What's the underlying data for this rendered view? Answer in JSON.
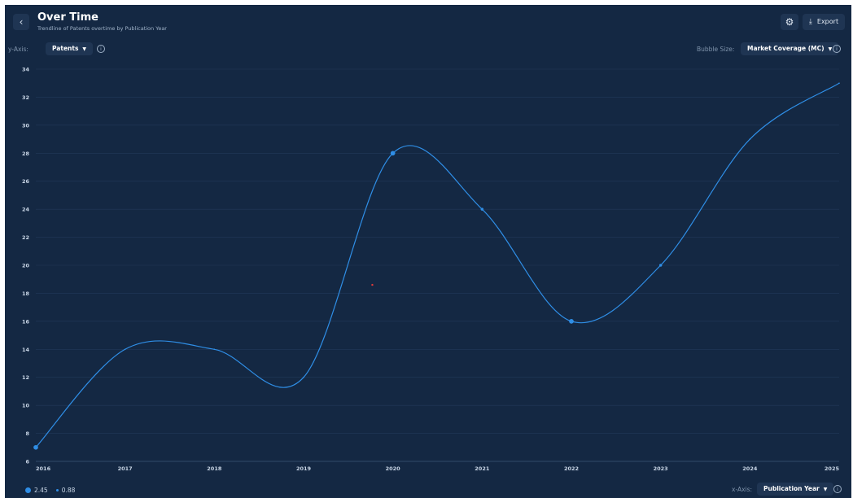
{
  "header": {
    "title": "Over Time",
    "subtitle": "Trendline of Patents overtime by Publication Year",
    "back_icon": "chevron-left-icon",
    "settings_icon": "gear-icon",
    "export_label": "Export",
    "export_icon": "download-icon"
  },
  "controls": {
    "y_axis_label": "y-Axis:",
    "y_axis_value": "Patents",
    "bubble_size_label": "Bubble Size:",
    "bubble_size_value": "Market Coverage (MC)",
    "x_axis_label": "x-Axis:",
    "x_axis_value": "Publication Year"
  },
  "legend": {
    "large_value": "2.45",
    "small_value": "0.88"
  },
  "colors": {
    "background": "#142843",
    "line": "#2f8ee6",
    "grid": "#22395a",
    "outlier": "#e03a3a"
  },
  "chart_data": {
    "type": "line",
    "title": "",
    "xlabel": "Publication Year",
    "ylabel": "Patents",
    "x": [
      2016,
      2017,
      2018,
      2019,
      2020,
      2021,
      2022,
      2023,
      2024,
      2025
    ],
    "series": [
      {
        "values": [
          7,
          14,
          14,
          12,
          28,
          24,
          16,
          20,
          29,
          33
        ],
        "bubble_size": [
          2.45,
          0.88,
          0.88,
          0.88,
          2.45,
          1.6,
          2.45,
          1.6,
          0.88,
          0.88
        ]
      }
    ],
    "outlier_point": {
      "x": 2019.77,
      "y": 18.6
    },
    "ylim": [
      6,
      34
    ],
    "yticks": [
      6,
      8,
      10,
      12,
      14,
      16,
      18,
      20,
      22,
      24,
      26,
      28,
      30,
      32,
      34
    ],
    "xlim": [
      2016,
      2025
    ],
    "grid": true,
    "legend_position": "bottom-left"
  }
}
